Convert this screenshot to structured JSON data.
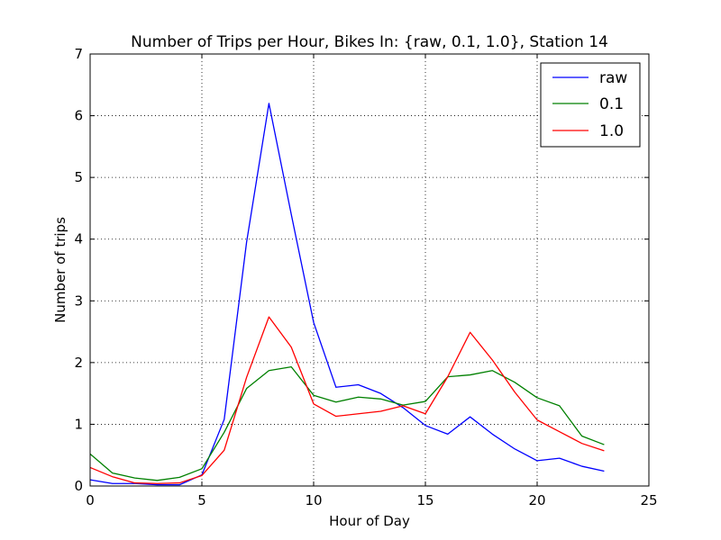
{
  "chart_data": {
    "type": "line",
    "title": "Number of Trips per Hour, Bikes In: {raw, 0.1, 1.0}, Station 14",
    "xlabel": "Hour of Day",
    "ylabel": "Number of trips",
    "xlim": [
      0,
      25
    ],
    "ylim": [
      0,
      7
    ],
    "xticks": [
      0,
      5,
      10,
      15,
      20,
      25
    ],
    "yticks": [
      0,
      1,
      2,
      3,
      4,
      5,
      6,
      7
    ],
    "grid": true,
    "legend_position": "top-right",
    "x": [
      0,
      1,
      2,
      3,
      4,
      5,
      6,
      7,
      8,
      9,
      10,
      11,
      12,
      13,
      14,
      15,
      16,
      17,
      18,
      19,
      20,
      21,
      22,
      23
    ],
    "series": [
      {
        "name": "raw",
        "color": "#0000ff",
        "values": [
          0.1,
          0.04,
          0.04,
          0.02,
          0.02,
          0.18,
          1.08,
          3.95,
          6.2,
          4.4,
          2.65,
          1.6,
          1.64,
          1.5,
          1.27,
          0.98,
          0.84,
          1.12,
          0.84,
          0.6,
          0.41,
          0.45,
          0.32,
          0.24
        ]
      },
      {
        "name": "0.1",
        "color": "#008000",
        "values": [
          0.52,
          0.21,
          0.13,
          0.09,
          0.14,
          0.28,
          0.87,
          1.58,
          1.87,
          1.93,
          1.47,
          1.36,
          1.44,
          1.41,
          1.31,
          1.37,
          1.77,
          1.8,
          1.87,
          1.68,
          1.43,
          1.3,
          0.81,
          0.67
        ]
      },
      {
        "name": "1.0",
        "color": "#ff0000",
        "values": [
          0.3,
          0.15,
          0.05,
          0.04,
          0.05,
          0.17,
          0.58,
          1.76,
          2.74,
          2.25,
          1.33,
          1.13,
          1.17,
          1.21,
          1.3,
          1.17,
          1.77,
          2.49,
          2.04,
          1.52,
          1.07,
          0.88,
          0.69,
          0.57
        ]
      }
    ]
  }
}
